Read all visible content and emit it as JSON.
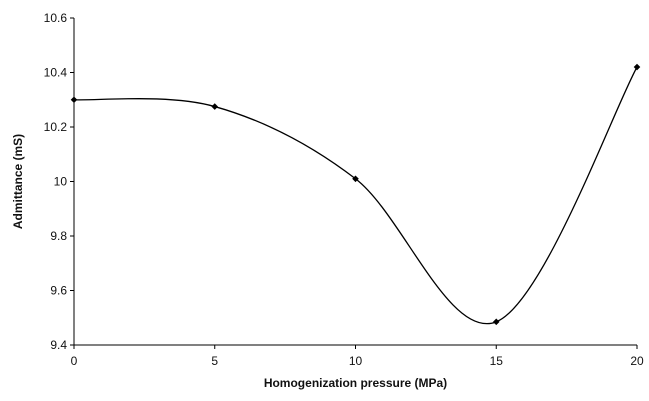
{
  "chart_data": {
    "type": "line",
    "title": "",
    "xlabel": "Homogenization pressure (MPa)",
    "ylabel": "Admittance (mS)",
    "xlim": [
      0,
      20
    ],
    "ylim": [
      9.4,
      10.6
    ],
    "x_ticks": [
      "0",
      "5",
      "10",
      "15",
      "20"
    ],
    "y_ticks": [
      "9.4",
      "9.6",
      "9.8",
      "10",
      "10.2",
      "10.4",
      "10.6"
    ],
    "grid": false,
    "legend": "none",
    "smooth": true,
    "marker": "diamond",
    "series": [
      {
        "x": [
          0,
          5,
          10,
          15,
          20
        ],
        "values": [
          10.3,
          10.275,
          10.01,
          9.485,
          10.42
        ]
      }
    ]
  }
}
